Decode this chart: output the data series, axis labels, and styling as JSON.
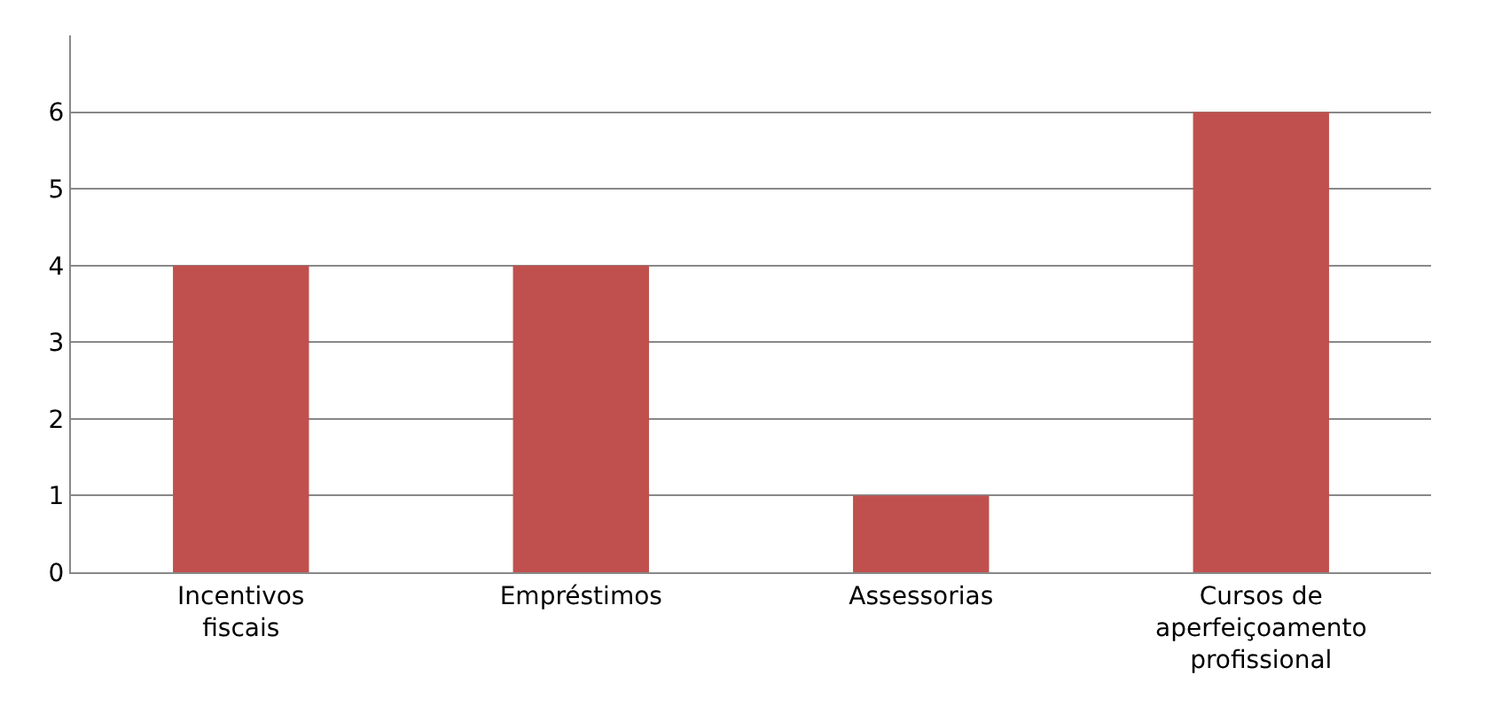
{
  "chart_data": {
    "type": "bar",
    "categories": [
      "Incentivos fiscais",
      "Empréstimos",
      "Assessorias",
      "Cursos de aperfeiçoamento profissional"
    ],
    "values": [
      4,
      4,
      1,
      6
    ],
    "color": "#c0504d",
    "ylim": [
      0,
      7
    ],
    "yticks": [
      0,
      1,
      2,
      3,
      4,
      5,
      6
    ],
    "grid": "y"
  }
}
